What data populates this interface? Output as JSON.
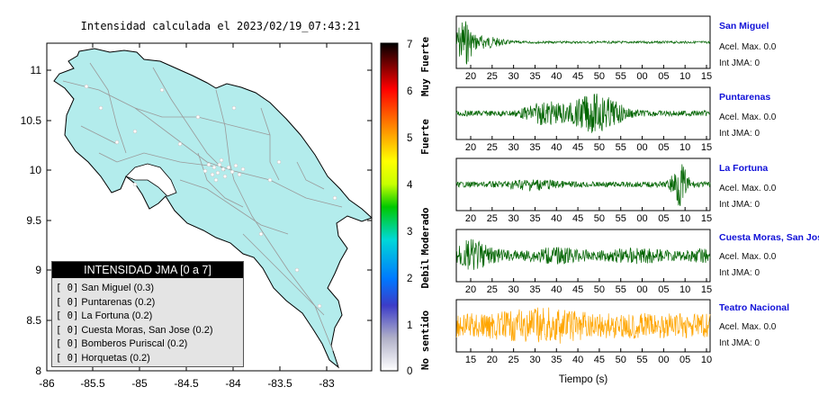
{
  "map": {
    "title": "Intensidad calculada el 2023/02/19_07:43:21",
    "lat_ticks": [
      "11",
      "10.5",
      "10",
      "9.5",
      "9",
      "8.5",
      "8"
    ],
    "lon_ticks": [
      "-86",
      "-85.5",
      "-85",
      "-84.5",
      "-84",
      "-83.5",
      "-83"
    ],
    "land_color": "#b3ecec"
  },
  "colorbar": {
    "ticks": [
      "7",
      "6",
      "5",
      "4",
      "3",
      "2",
      "1",
      "0"
    ],
    "labels": [
      "Muy Fuerte",
      "Fuerte",
      "Moderado",
      "Debil",
      "No sentido"
    ]
  },
  "legend": {
    "title": "INTENSIDAD JMA [0 a 7]",
    "items": [
      {
        "bracket": "[ 0]",
        "text": "San Miguel (0.3)"
      },
      {
        "bracket": "[ 0]",
        "text": "Puntarenas (0.2)"
      },
      {
        "bracket": "[ 0]",
        "text": "La Fortuna (0.2)"
      },
      {
        "bracket": "[ 0]",
        "text": "Cuesta Moras, San Jose (0.2)"
      },
      {
        "bracket": "[ 0]",
        "text": "Bomberos Puriscal (0.2)"
      },
      {
        "bracket": "[ 0]",
        "text": "Horquetas (0.2)"
      }
    ]
  },
  "stations": [
    {
      "name": "San Miguel",
      "acel": "Acel. Max. 0.0",
      "int": "Int JMA: 0",
      "color": "#006400",
      "ticks": [
        "20",
        "25",
        "30",
        "35",
        "40",
        "45",
        "50",
        "55",
        "00",
        "05",
        "10",
        "15"
      ]
    },
    {
      "name": "Puntarenas",
      "acel": "Acel. Max. 0.0",
      "int": "Int JMA: 0",
      "color": "#006400",
      "ticks": [
        "20",
        "25",
        "30",
        "35",
        "40",
        "45",
        "50",
        "55",
        "00",
        "05",
        "10",
        "15"
      ]
    },
    {
      "name": "La Fortuna",
      "acel": "Acel. Max. 0.0",
      "int": "Int JMA: 0",
      "color": "#006400",
      "ticks": [
        "20",
        "25",
        "30",
        "35",
        "40",
        "45",
        "50",
        "55",
        "00",
        "05",
        "10",
        "15"
      ]
    },
    {
      "name": "Cuesta Moras, San Jose",
      "acel": "Acel. Max. 0.0",
      "int": "Int JMA: 0",
      "color": "#006400",
      "ticks": [
        "20",
        "25",
        "30",
        "35",
        "40",
        "45",
        "50",
        "55",
        "00",
        "05",
        "10",
        "15"
      ]
    },
    {
      "name": "Teatro Nacional",
      "acel": "Acel. Max. 0.0",
      "int": "Int JMA: 0",
      "color": "#ffa500",
      "ticks": [
        "15",
        "20",
        "25",
        "30",
        "35",
        "40",
        "45",
        "50",
        "55",
        "00",
        "05",
        "10"
      ]
    }
  ],
  "time_axis_label": "Tiempo (s)"
}
